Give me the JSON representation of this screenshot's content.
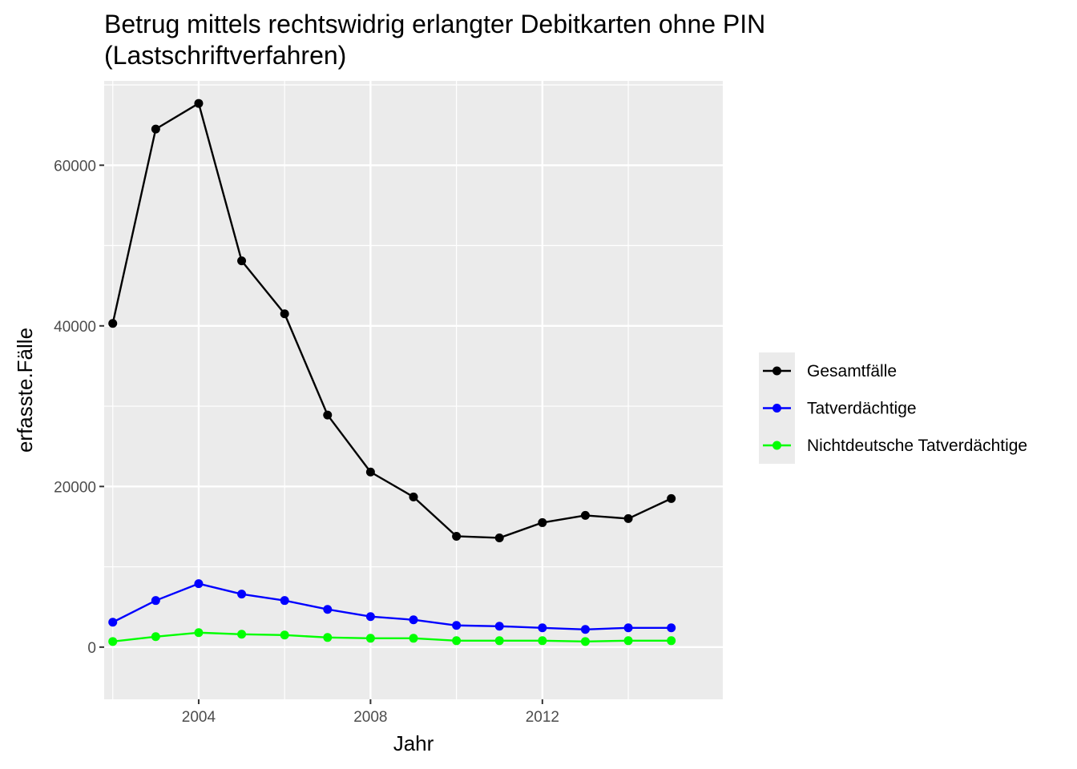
{
  "chart_data": {
    "type": "line",
    "title_line1": "Betrug mittels rechtswidrig erlangter Debitkarten ohne PIN",
    "title_line2": "(Lastschriftverfahren)",
    "xlabel": "Jahr",
    "ylabel": "erfasste.Fälle",
    "xlim": [
      2001.8,
      2016.2
    ],
    "ylim": [
      -6500,
      70500
    ],
    "x_ticks": [
      2004,
      2008,
      2012
    ],
    "y_ticks": [
      0,
      20000,
      40000,
      60000
    ],
    "grid": true,
    "legend_position": "right",
    "x": [
      2002,
      2003,
      2004,
      2005,
      2006,
      2007,
      2008,
      2009,
      2010,
      2011,
      2012,
      2013,
      2014,
      2015
    ],
    "series": [
      {
        "name": "Gesamtfälle",
        "color": "#000000",
        "values": [
          40300,
          64500,
          67700,
          48100,
          41500,
          28900,
          21800,
          18700,
          13800,
          13600,
          15500,
          16400,
          16000,
          18500
        ]
      },
      {
        "name": "Tatverdächtige",
        "color": "#0000ff",
        "values": [
          3100,
          5800,
          7900,
          6600,
          5800,
          4700,
          3800,
          3400,
          2700,
          2600,
          2400,
          2200,
          2400,
          2400
        ]
      },
      {
        "name": "Nichtdeutsche Tatverdächtige",
        "color": "#00ff00",
        "values": [
          700,
          1300,
          1800,
          1600,
          1500,
          1200,
          1100,
          1100,
          800,
          800,
          800,
          700,
          800,
          800
        ]
      }
    ]
  }
}
